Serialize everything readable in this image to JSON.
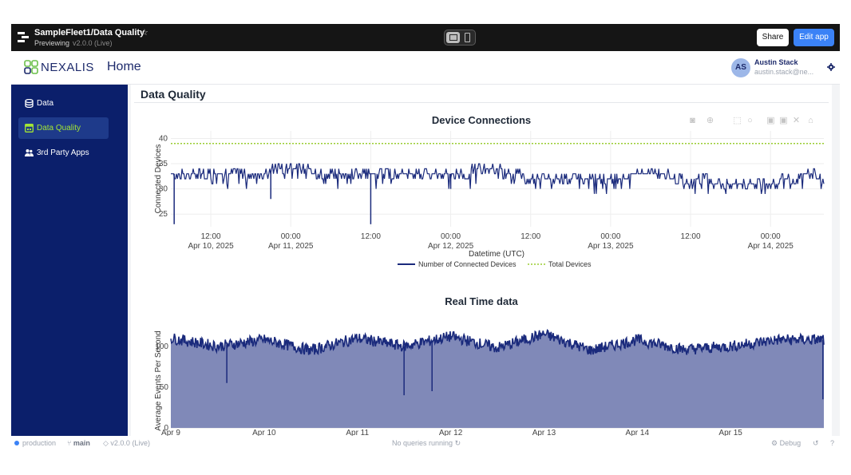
{
  "topbar": {
    "title": "SampleFleet1/Data Quality",
    "status": "Previewing",
    "version": "v2.0.0 (Live)",
    "share_label": "Share",
    "edit_label": "Edit app",
    "star_icon": "star-icon"
  },
  "header": {
    "logo_text": "NEXALIS",
    "page_title": "Home",
    "user_initials": "AS",
    "user_name": "Austin Stack",
    "user_email": "austin.stack@ne..."
  },
  "sidebar": {
    "items": [
      {
        "label": "Data",
        "icon": "database-icon",
        "active": false
      },
      {
        "label": "Data Quality",
        "icon": "table-icon",
        "active": true
      },
      {
        "label": "3rd Party Apps",
        "icon": "users-icon",
        "active": false
      }
    ]
  },
  "main": {
    "section_title": "Data Quality"
  },
  "colors": {
    "topbar_bg": "#151515",
    "sidebar_bg": "#0b1f6b",
    "active_text": "#a3e635",
    "series_navy": "#1a2a7c",
    "total_line": "#9acd32",
    "accent": "#3b82f6"
  },
  "chart_data": [
    {
      "type": "line",
      "title": "Device Connections",
      "xlabel": "Datetime (UTC)",
      "ylabel": "Connected Devices",
      "x_ticks": [
        {
          "line1": "12:00",
          "line2": "Apr 10, 2025"
        },
        {
          "line1": "00:00",
          "line2": "Apr 11, 2025"
        },
        {
          "line1": "12:00",
          "line2": ""
        },
        {
          "line1": "00:00",
          "line2": "Apr 12, 2025"
        },
        {
          "line1": "12:00",
          "line2": ""
        },
        {
          "line1": "00:00",
          "line2": "Apr 13, 2025"
        },
        {
          "line1": "12:00",
          "line2": ""
        },
        {
          "line1": "00:00",
          "line2": "Apr 14, 2025"
        }
      ],
      "y_ticks": [
        25,
        30,
        35,
        40
      ],
      "ylim": [
        22.5,
        41.5
      ],
      "xlim_hours_label": [
        "Apr 10, 2025 06:00",
        "Apr 14, 2025 08:00"
      ],
      "grid": true,
      "legend_position": "bottom",
      "series": [
        {
          "name": "Number of Connected Devices",
          "style": "solid",
          "x": [
            "Apr 10 06:00",
            "Apr 10 12:00",
            "Apr 10 18:00",
            "Apr 11 00:00",
            "Apr 11 06:00",
            "Apr 11 12:00",
            "Apr 11 18:00",
            "Apr 12 00:00",
            "Apr 12 06:00",
            "Apr 12 12:00",
            "Apr 12 18:00",
            "Apr 13 00:00",
            "Apr 13 06:00",
            "Apr 13 12:00",
            "Apr 13 18:00",
            "Apr 14 00:00",
            "Apr 14 06:00",
            "Apr 14 08:00"
          ],
          "values": [
            33,
            33,
            33,
            34,
            33,
            33,
            33,
            33,
            34,
            32,
            32,
            32,
            33,
            32,
            31,
            31,
            33,
            32
          ]
        },
        {
          "name": "Total Devices",
          "style": "dotted",
          "values": [
            39,
            39
          ]
        }
      ],
      "dips": [
        {
          "x": "Apr 10 06:30",
          "y": 23
        },
        {
          "x": "Apr 10 21:00",
          "y": 28
        },
        {
          "x": "Apr 11 12:00",
          "y": 23
        },
        {
          "x": "Apr 12 00:00",
          "y": 30
        }
      ]
    },
    {
      "type": "area",
      "title": "Real Time data",
      "xlabel": "",
      "ylabel": "Average Events Per Second",
      "x_ticks": [
        "Apr 9",
        "Apr 10",
        "Apr 11",
        "Apr 12",
        "Apr 13",
        "Apr 14",
        "Apr 15"
      ],
      "y_ticks": [
        0,
        50,
        100
      ],
      "ylim": [
        0,
        135
      ],
      "grid": true,
      "series": [
        {
          "name": "",
          "x": [
            "Apr 9",
            "Apr 9.5",
            "Apr 10",
            "Apr 10.5",
            "Apr 11",
            "Apr 11.5",
            "Apr 12",
            "Apr 12.5",
            "Apr 13",
            "Apr 13.5",
            "Apr 14",
            "Apr 14.5",
            "Apr 15",
            "Apr 15.5"
          ],
          "values": [
            110,
            100,
            108,
            95,
            110,
            100,
            112,
            98,
            115,
            95,
            108,
            96,
            100,
            108
          ]
        }
      ],
      "dips": [
        {
          "x": "Apr 9.6",
          "y": 55
        },
        {
          "x": "Apr 11.5",
          "y": 40
        },
        {
          "x": "Apr 11.8",
          "y": 45
        },
        {
          "x": "Apr 15.99",
          "y": 35
        }
      ]
    }
  ],
  "status": {
    "env": "production",
    "branch": "main",
    "version": "v2.0.0 (Live)",
    "queries": "No queries running",
    "debug": "Debug"
  }
}
